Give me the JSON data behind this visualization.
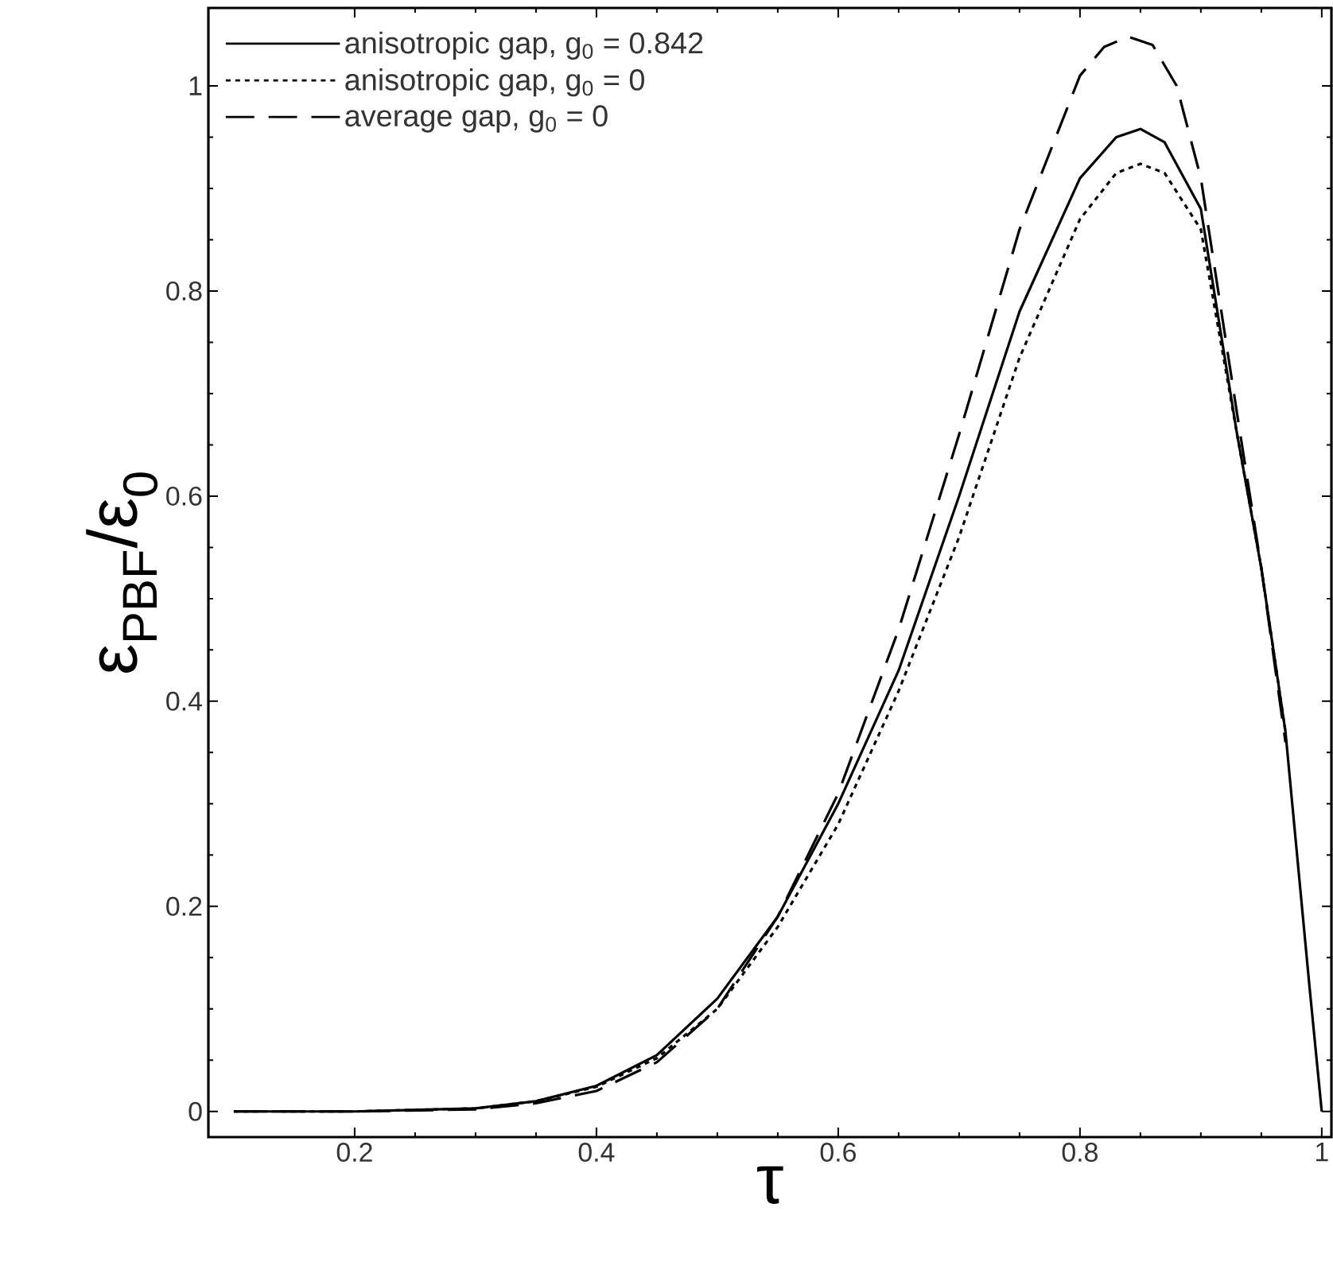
{
  "chart_data": {
    "type": "line",
    "xlabel": "τ",
    "ylabel": "ε$_{PBF}$/ε$_{0}$",
    "xlim": [
      0.079,
      1.008
    ],
    "ylim": [
      -0.025,
      1.076
    ],
    "xticks": [
      0.2,
      0.4,
      0.6,
      0.8,
      1
    ],
    "yticks": [
      0,
      0.2,
      0.4,
      0.6,
      0.8,
      1
    ],
    "legend": "top left",
    "marker": "none",
    "series": [
      {
        "name": "anisotropic gap, g$_{0}$ = 0.842",
        "color": "#000000",
        "line_style": "solid",
        "x": [
          0.1,
          0.2,
          0.3,
          0.35,
          0.4,
          0.45,
          0.5,
          0.55,
          0.6,
          0.65,
          0.7,
          0.75,
          0.8,
          0.83,
          0.85,
          0.87,
          0.9,
          0.93,
          0.95,
          0.97,
          0.99,
          1.0
        ],
        "values": [
          0,
          0,
          0.003,
          0.01,
          0.025,
          0.055,
          0.11,
          0.19,
          0.3,
          0.43,
          0.6,
          0.78,
          0.91,
          0.95,
          0.958,
          0.945,
          0.88,
          0.66,
          0.53,
          0.37,
          0.12,
          0
        ]
      },
      {
        "name": "anisotropic gap, g$_{0}$ = 0",
        "color": "#000000",
        "line_style": "dotted",
        "x": [
          0.1,
          0.2,
          0.3,
          0.35,
          0.4,
          0.45,
          0.5,
          0.55,
          0.6,
          0.65,
          0.7,
          0.75,
          0.8,
          0.83,
          0.85,
          0.87,
          0.9,
          0.93,
          0.95,
          0.97
        ],
        "values": [
          0,
          0,
          0.003,
          0.01,
          0.024,
          0.052,
          0.1,
          0.18,
          0.28,
          0.41,
          0.56,
          0.735,
          0.87,
          0.915,
          0.924,
          0.915,
          0.86,
          0.66,
          0.53,
          0.37
        ]
      },
      {
        "name": "average gap, g$_{0}$ = 0",
        "color": "#000000",
        "line_style": "dashed",
        "x": [
          0.1,
          0.2,
          0.3,
          0.35,
          0.4,
          0.45,
          0.5,
          0.55,
          0.6,
          0.65,
          0.7,
          0.75,
          0.8,
          0.82,
          0.84,
          0.86,
          0.88,
          0.9,
          0.93,
          0.95,
          0.97
        ],
        "values": [
          0,
          0,
          0.002,
          0.008,
          0.02,
          0.048,
          0.1,
          0.19,
          0.31,
          0.47,
          0.66,
          0.86,
          1.01,
          1.038,
          1.048,
          1.04,
          1.0,
          0.91,
          0.68,
          0.53,
          0.36
        ]
      }
    ]
  }
}
